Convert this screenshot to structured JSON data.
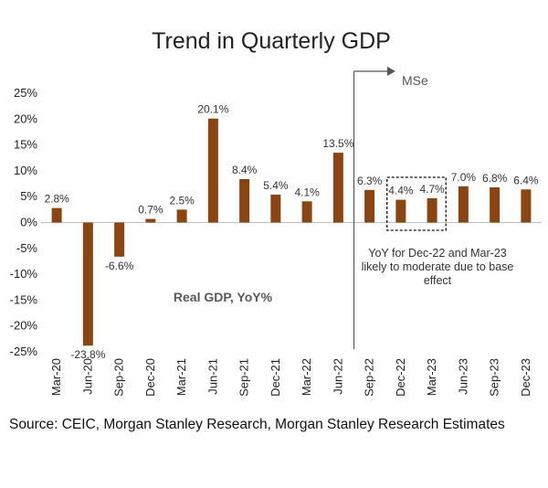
{
  "chart_data": {
    "type": "bar",
    "title": "Trend in Quarterly GDP",
    "categories": [
      "Mar-20",
      "Jun-20",
      "Sep-20",
      "Dec-20",
      "Mar-21",
      "Jun-21",
      "Sep-21",
      "Dec-21",
      "Mar-22",
      "Jun-22",
      "Sep-22",
      "Dec-22",
      "Mar-23",
      "Jun-23",
      "Sep-23",
      "Dec-23"
    ],
    "series": [
      {
        "name": "Real GDP, YoY%",
        "values": [
          2.8,
          -23.8,
          -6.6,
          0.7,
          2.5,
          20.1,
          8.4,
          5.4,
          4.1,
          13.5,
          6.3,
          4.4,
          4.7,
          7.0,
          6.8,
          6.4
        ],
        "labels": [
          "2.8%",
          "-23.8%",
          "-6.6%",
          "0.7%",
          "2.5%",
          "20.1%",
          "8.4%",
          "5.4%",
          "4.1%",
          "13.5%",
          "6.3%",
          "4.4%",
          "4.7%",
          "7.0%",
          "6.8%",
          "6.4%"
        ]
      }
    ],
    "ylim": [
      -25,
      25
    ],
    "yticks": [
      25,
      20,
      15,
      10,
      5,
      0,
      -5,
      -10,
      -15,
      -20,
      -25
    ],
    "ytick_labels": [
      "25%",
      "20%",
      "15%",
      "10%",
      "5%",
      "0%",
      "-5%",
      "-10%",
      "-15%",
      "-20%",
      "-25%"
    ],
    "bar_color": "#8B4513",
    "grid": false,
    "forecast_divider": {
      "after_category": "Jun-22",
      "label": "MSe"
    },
    "highlight_box": {
      "categories": [
        "Dec-22",
        "Mar-23"
      ]
    },
    "annotation": "YoY for Dec-22 and Mar-23 likely to moderate due to base effect",
    "annotation_lines": [
      "YoY for Dec-22 and Mar-23",
      "likely to moderate due to base",
      "effect"
    ]
  },
  "source": "Source: CEIC, Morgan Stanley Research, Morgan Stanley Research Estimates"
}
